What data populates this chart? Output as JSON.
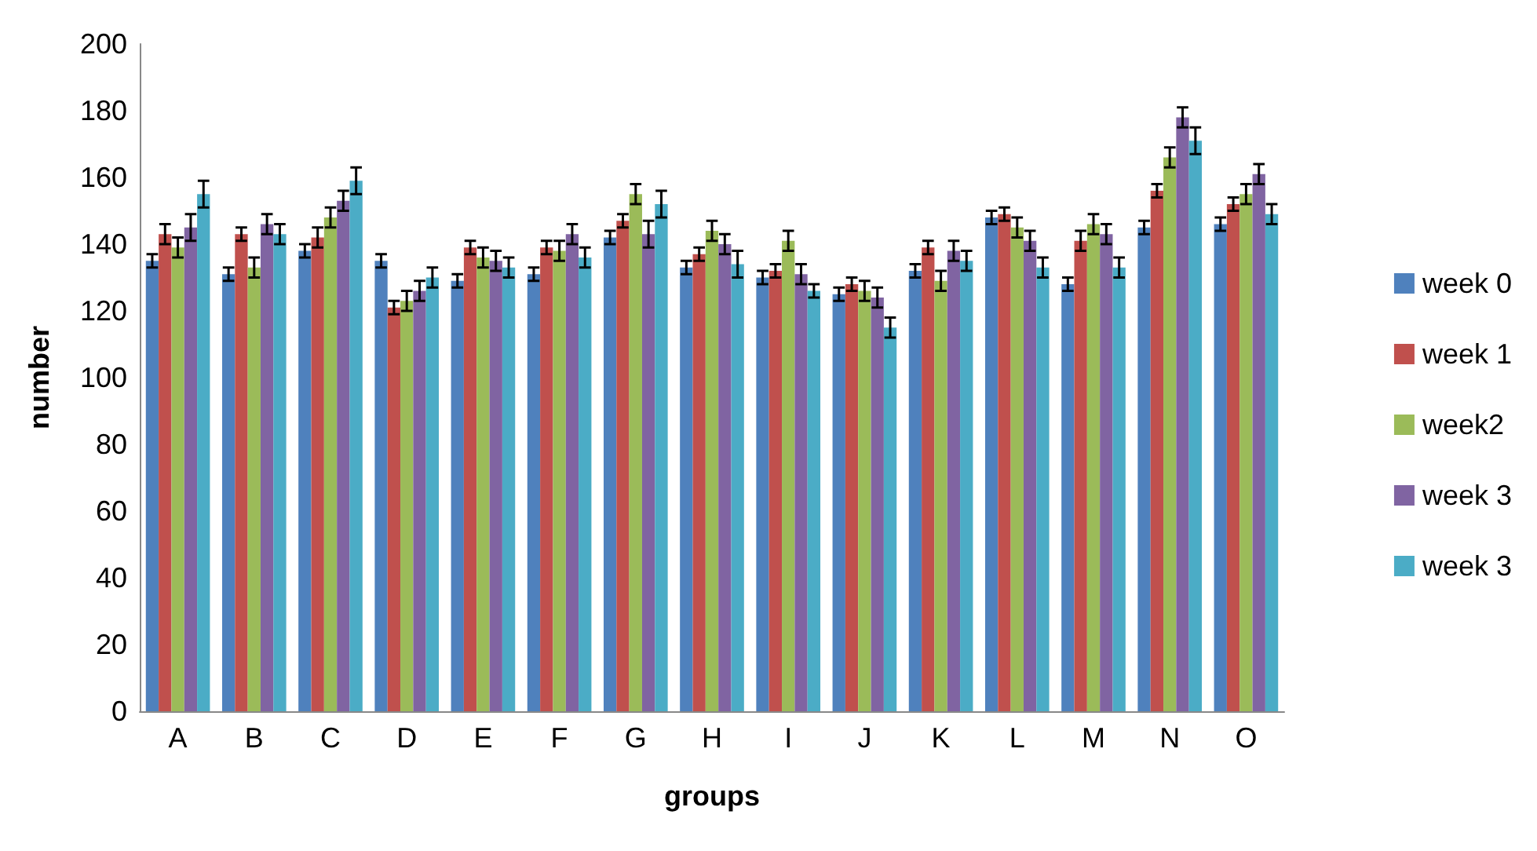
{
  "chart_data": {
    "type": "bar",
    "xlabel": "groups",
    "ylabel": "number",
    "categories": [
      "A",
      "B",
      "C",
      "D",
      "E",
      "F",
      "G",
      "H",
      "I",
      "J",
      "K",
      "L",
      "M",
      "N",
      "O"
    ],
    "series": [
      {
        "name": "week 0",
        "color": "#4f81bd",
        "values": [
          135,
          131,
          138,
          135,
          129,
          131,
          142,
          133,
          130,
          125,
          132,
          148,
          128,
          145,
          146
        ],
        "errors": [
          2,
          2,
          2,
          2,
          2,
          2,
          2,
          2,
          2,
          2,
          2,
          2,
          2,
          2,
          2
        ]
      },
      {
        "name": "week 1",
        "color": "#c0504d",
        "values": [
          143,
          143,
          142,
          121,
          139,
          139,
          147,
          137,
          132,
          128,
          139,
          149,
          141,
          156,
          152
        ],
        "errors": [
          3,
          2,
          3,
          2,
          2,
          2,
          2,
          2,
          2,
          2,
          2,
          2,
          3,
          2,
          2
        ]
      },
      {
        "name": "week2",
        "color": "#9bbb59",
        "values": [
          139,
          133,
          148,
          123,
          136,
          138,
          155,
          144,
          141,
          126,
          129,
          145,
          146,
          166,
          155
        ],
        "errors": [
          3,
          3,
          3,
          3,
          3,
          3,
          3,
          3,
          3,
          3,
          3,
          3,
          3,
          3,
          3
        ]
      },
      {
        "name": "week 3",
        "color": "#8064a2",
        "values": [
          145,
          146,
          153,
          126,
          135,
          143,
          143,
          140,
          131,
          124,
          138,
          141,
          143,
          178,
          161
        ],
        "errors": [
          4,
          3,
          3,
          3,
          3,
          3,
          4,
          3,
          3,
          3,
          3,
          3,
          3,
          3,
          3
        ]
      },
      {
        "name": "week 3",
        "color": "#4bacc6",
        "values": [
          155,
          143,
          159,
          130,
          133,
          136,
          152,
          134,
          126,
          115,
          135,
          133,
          133,
          171,
          149
        ],
        "errors": [
          4,
          3,
          4,
          3,
          3,
          3,
          4,
          4,
          2,
          3,
          3,
          3,
          3,
          4,
          3
        ]
      }
    ],
    "ylim": [
      0,
      200
    ],
    "yticks": [
      0,
      20,
      40,
      60,
      80,
      100,
      120,
      140,
      160,
      180,
      200
    ],
    "grid": false,
    "legend": "right"
  }
}
